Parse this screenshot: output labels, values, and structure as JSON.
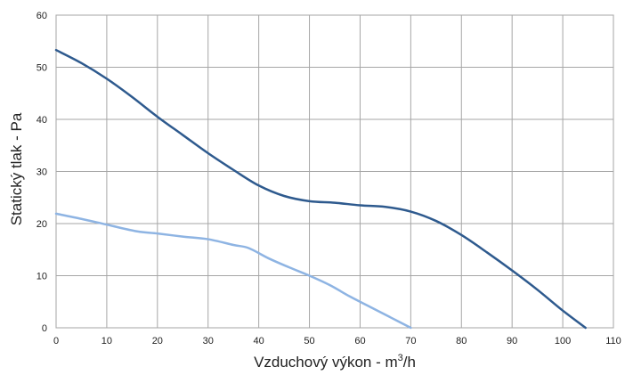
{
  "chart_data": {
    "type": "line",
    "title": "",
    "xlabel": "Vzduchový výkon - m",
    "xlabel_superscript": "3",
    "xlabel_suffix": "/h",
    "ylabel": "Statický tlak - Pa",
    "xlim": [
      0,
      110
    ],
    "ylim": [
      0,
      60
    ],
    "x_ticks": [
      "0",
      "10",
      "20",
      "30",
      "40",
      "50",
      "60",
      "70",
      "80",
      "90",
      "100",
      "110"
    ],
    "y_ticks": [
      "0",
      "10",
      "20",
      "30",
      "40",
      "50",
      "60"
    ],
    "grid": true,
    "legend": "none",
    "series": [
      {
        "color": "#2e5a8e",
        "x": [
          0,
          5,
          10,
          15,
          20,
          25,
          30,
          35,
          40,
          45,
          50,
          55,
          60,
          65,
          70,
          75,
          80,
          85,
          90,
          95,
          100,
          104.5
        ],
        "y": [
          53.3,
          50.8,
          47.8,
          44.3,
          40.5,
          37.0,
          33.5,
          30.3,
          27.3,
          25.3,
          24.3,
          24.0,
          23.5,
          23.2,
          22.3,
          20.5,
          17.8,
          14.5,
          11.0,
          7.3,
          3.3,
          0
        ]
      },
      {
        "color": "#8eb4e3",
        "x": [
          0,
          5,
          10,
          16,
          20,
          25,
          30,
          35,
          38,
          42,
          46,
          50,
          54,
          58,
          62,
          66,
          70
        ],
        "y": [
          21.9,
          20.9,
          19.8,
          18.5,
          18.1,
          17.5,
          17.0,
          15.9,
          15.3,
          13.3,
          11.6,
          10.0,
          8.2,
          6.0,
          4.0,
          2.0,
          0
        ]
      }
    ]
  }
}
